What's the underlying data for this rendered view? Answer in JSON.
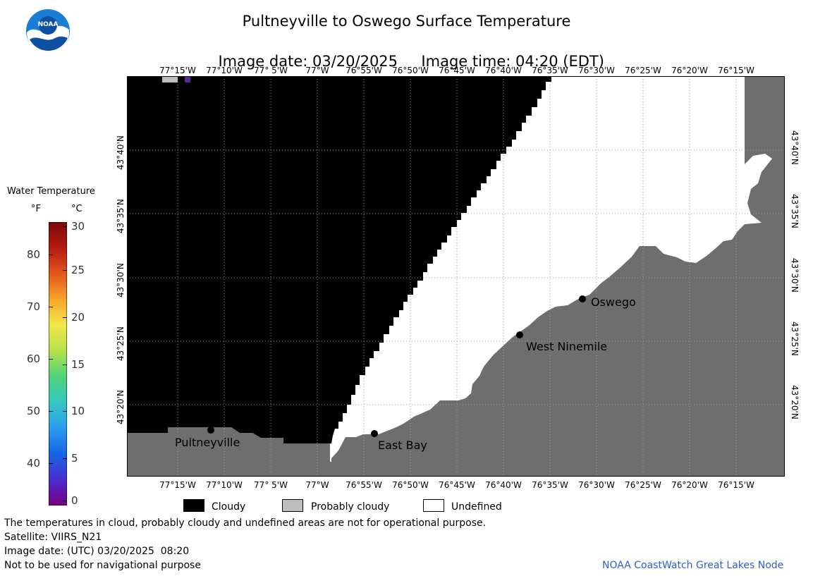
{
  "header": {
    "title": "Pultneyville to Oswego Surface Temperature",
    "image_date_label": "Image date: 03/20/2025",
    "image_time_label": "Image time: 04:20 (EDT)"
  },
  "logo": {
    "text": "NOAA"
  },
  "colorbar": {
    "title": "Water Temperature",
    "unit_f": "°F",
    "unit_c": "°C",
    "f_ticks": [
      "80",
      "70",
      "60",
      "50",
      "40"
    ],
    "c_ticks": [
      "30",
      "25",
      "20",
      "15",
      "10",
      "5",
      "0"
    ],
    "colors": [
      "#7a0080",
      "#4b2ccf",
      "#1565e6",
      "#2b9cf0",
      "#35c7c0",
      "#4dd27a",
      "#b4e04a",
      "#f2e84a",
      "#f6a52a",
      "#e4561c",
      "#b51a10",
      "#7a0a08"
    ]
  },
  "map": {
    "lon_labels": [
      "77°15'W",
      "77°10'W",
      "77° 5'W",
      "77°W",
      "76°55'W",
      "76°50'W",
      "76°45'W",
      "76°40'W",
      "76°35'W",
      "76°30'W",
      "76°25'W",
      "76°20'W",
      "76°15'W"
    ],
    "lat_labels": [
      "43°40'N",
      "43°35'N",
      "43°30'N",
      "43°25'N",
      "43°20'N"
    ],
    "places": [
      {
        "name": "Pultneyville"
      },
      {
        "name": "East Bay"
      },
      {
        "name": "West Ninemile"
      },
      {
        "name": "Oswego"
      }
    ],
    "colors": {
      "cloudy": "#000000",
      "land": "#6e6e6e",
      "undefined": "#ffffff",
      "probably_cloudy": "#bebebe",
      "grid": "#9a9a9a"
    }
  },
  "legend": {
    "items": [
      {
        "label": "Cloudy",
        "color": "#000000"
      },
      {
        "label": "Probably cloudy",
        "color": "#bebebe"
      },
      {
        "label": "Undefined",
        "color": "#ffffff"
      }
    ]
  },
  "footer": {
    "note": "The temperatures in cloud, probably cloudy and undefined areas are not for operational purpose.",
    "satellite": "Satellite: VIIRS_N21",
    "utc_date": "Image date: (UTC) 03/20/2025  08:20",
    "disclaimer": "Not to be used for navigational purpose",
    "credit": "NOAA CoastWatch Great Lakes Node"
  }
}
